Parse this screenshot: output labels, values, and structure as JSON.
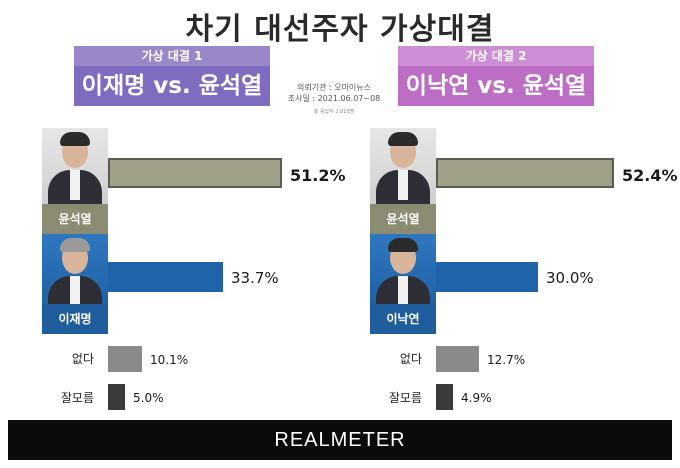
{
  "title": "차기 대선주자 가상대결",
  "meta": {
    "pollster": "의뢰기관 : 오마이뉴스",
    "period": "조사일 : 2021.06.07~08",
    "sample": "총 응답자 2,013명"
  },
  "brand": "REALMETER",
  "colors": {
    "matchup1": "#7f6bc0",
    "matchup2": "#bc6ec5",
    "yoon": "#a0a188",
    "lee": "#1f63a8",
    "none": "#8a8a8a",
    "dont_know": "#3a3a3a"
  },
  "chart_data": [
    {
      "type": "bar",
      "subtitle": "가상 대결 1",
      "title": "이재명 vs. 윤석열",
      "categories": [
        "윤석열",
        "이재명",
        "없다",
        "잘모름"
      ],
      "values": [
        51.2,
        33.7,
        10.1,
        5.0
      ],
      "labels": [
        "51.2%",
        "33.7%",
        "10.1%",
        "5.0%"
      ],
      "xlim": [
        0,
        60
      ]
    },
    {
      "type": "bar",
      "subtitle": "가상 대결 2",
      "title": "이낙연 vs. 윤석열",
      "categories": [
        "윤석열",
        "이낙연",
        "없다",
        "잘모름"
      ],
      "values": [
        52.4,
        30.0,
        12.7,
        4.9
      ],
      "labels": [
        "52.4%",
        "30.0%",
        "12.7%",
        "4.9%"
      ],
      "xlim": [
        0,
        60
      ]
    }
  ]
}
